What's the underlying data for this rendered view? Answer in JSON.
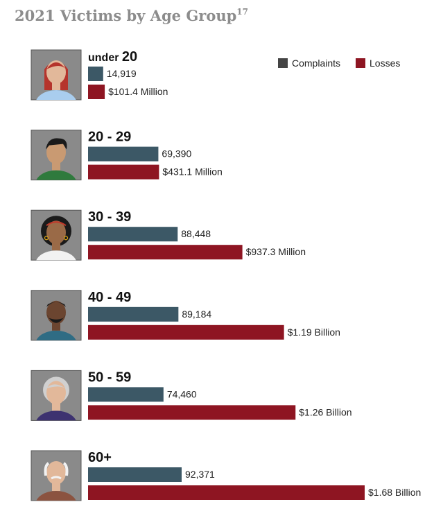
{
  "colors": {
    "complaints": "#3c5866",
    "losses": "#8e1522",
    "title": "#8c8c8c",
    "avatar_bg": "#8a8a8a"
  },
  "chart_data": {
    "type": "bar",
    "orientation": "horizontal",
    "title": "2021 Victims by Age Group",
    "title_superscript": "17",
    "legend": {
      "placement": "top-right",
      "entries": [
        "Complaints",
        "Losses"
      ]
    },
    "groups": [
      {
        "prefix": "under",
        "label": "20",
        "icon": "young-woman-avatar-icon",
        "complaints": 14919,
        "complaints_label": "14,919",
        "losses_millions": 101.4,
        "losses_label": "$101.4 Million"
      },
      {
        "prefix": "",
        "label": "20 - 29",
        "icon": "young-man-avatar-icon",
        "complaints": 69390,
        "complaints_label": "69,390",
        "losses_millions": 431.1,
        "losses_label": "$431.1 Million"
      },
      {
        "prefix": "",
        "label": "30 - 39",
        "icon": "woman-curly-hair-avatar-icon",
        "complaints": 88448,
        "complaints_label": "88,448",
        "losses_millions": 937.3,
        "losses_label": "$937.3 Million"
      },
      {
        "prefix": "",
        "label": "40 - 49",
        "icon": "bearded-man-avatar-icon",
        "complaints": 89184,
        "complaints_label": "89,184",
        "losses_millions": 1190,
        "losses_label": "$1.19 Billion"
      },
      {
        "prefix": "",
        "label": "50 - 59",
        "icon": "gray-haired-woman-avatar-icon",
        "complaints": 74460,
        "complaints_label": "74,460",
        "losses_millions": 1260,
        "losses_label": "$1.26 Billion"
      },
      {
        "prefix": "",
        "label": "60+",
        "icon": "elderly-man-avatar-icon",
        "complaints": 92371,
        "complaints_label": "92,371",
        "losses_millions": 1680,
        "losses_label": "$1.68 Billion"
      }
    ]
  }
}
